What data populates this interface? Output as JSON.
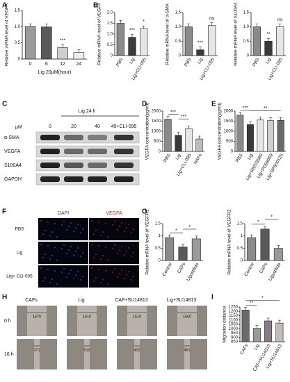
{
  "chart_data": [
    {
      "type": "bar",
      "ylabel": "Relative mRNA level of VEGFA",
      "xlabel": "Lig 20μM(hour)",
      "categories": [
        "0",
        "6",
        "12",
        "24"
      ],
      "values": [
        1.0,
        0.99,
        0.35,
        0.2
      ],
      "colors": [
        "#9a9a9a",
        "#5a5a5a",
        "#cfcfcf",
        "#efefef"
      ],
      "ylim": [
        0,
        1.5
      ],
      "yticks": [
        0,
        0.5,
        {
          "value": 1,
          "label": "1.0"
        },
        1.5
      ],
      "annotations": [
        "***"
      ]
    },
    {
      "type": "bar",
      "ylabel": "Relative mRNA level of VEGFA",
      "categories": [
        "PBS",
        "Lig",
        "Lig+CLI-095"
      ],
      "values": [
        1.5,
        0.85,
        1.25
      ],
      "colors": [
        "#8a8a8a",
        "#3a3a3a",
        "#e6e6e6"
      ],
      "ylim": [
        0,
        2
      ],
      "yticks": [
        0,
        0.5,
        {
          "value": 1,
          "label": "1.0"
        },
        1.5,
        {
          "value": 2,
          "label": "2.0"
        }
      ],
      "annotations": [
        "***",
        "*"
      ]
    },
    {
      "type": "bar",
      "ylabel": "Relative mRNA level of α-SMA",
      "categories": [
        "PBS",
        "Lig",
        "Lig+CLI-095"
      ],
      "values": [
        1.0,
        0.2,
        1.05
      ],
      "colors": [
        "#8a8a8a",
        "#3a3a3a",
        "#e6e6e6"
      ],
      "ylim": [
        0,
        1.5
      ],
      "yticks": [
        0,
        0.5,
        {
          "value": 1,
          "label": "1.0"
        },
        1.5
      ],
      "annotations": [
        "***",
        "ns"
      ]
    },
    {
      "type": "bar",
      "ylabel": "Relative mRNA level of S100A4",
      "categories": [
        "PBS",
        "Lig",
        "Lig+CLI-095"
      ],
      "values": [
        1.0,
        0.5,
        1.0
      ],
      "colors": [
        "#8a8a8a",
        "#3a3a3a",
        "#e6e6e6"
      ],
      "ylim": [
        0,
        1.5
      ],
      "yticks": [
        0,
        0.5,
        {
          "value": 1,
          "label": "1.0"
        },
        1.5
      ],
      "annotations": [
        "**",
        "ns"
      ]
    },
    {
      "type": "bar",
      "ylabel": "VEGFA concentration(pg/ml)",
      "categories": [
        "PBS",
        "Lig",
        "Lig+CLI-095",
        "NAFs"
      ],
      "values": [
        1600,
        800,
        1130,
        620
      ],
      "colors": [
        "#8a8a8a",
        "#3a3a3a",
        "#e6e6e6",
        "#bdbdbd"
      ],
      "ylim": [
        0,
        2000
      ],
      "yticks": [
        0,
        500,
        1000,
        1500,
        2000
      ],
      "annotations": [
        "***",
        "***"
      ]
    },
    {
      "type": "bar",
      "ylabel": "VEGFA concentration(pg/ml)",
      "categories": [
        "PBS",
        "Lig",
        "Lig+SB203580",
        "Lig+PD98059",
        "Lig+SP600125"
      ],
      "values": [
        1800,
        1330,
        1560,
        1530,
        1540
      ],
      "colors": [
        "#8a8a8a",
        "#3a3a3a",
        "#e6e6e6",
        "#cfcfcf",
        "#6a6a6a"
      ],
      "ylim": [
        0,
        2000
      ],
      "yticks": [
        0,
        500,
        1000,
        1500,
        2000
      ],
      "annotations": [
        "***",
        "**"
      ]
    },
    {
      "type": "bar",
      "ylabel": "Relative mRNA level of VEGFR1",
      "categories": [
        "Control",
        "CAFs",
        "Ligustilide"
      ],
      "values": [
        0.93,
        0.55,
        0.88
      ],
      "colors": [
        "#8a8a8a",
        "#5a5a5a",
        "#9a9a9a"
      ],
      "ylim": [
        0,
        1.5
      ],
      "yticks": [
        0,
        0.5,
        1,
        1.5
      ],
      "annotations": [
        "*",
        "*"
      ]
    },
    {
      "type": "bar",
      "ylabel": "Relative mRNA level of VEGFR2",
      "categories": [
        "Control",
        "CAFs",
        "Ligustilide"
      ],
      "values": [
        0.93,
        1.28,
        0.49
      ],
      "colors": [
        "#8a8a8a",
        "#5a5a5a",
        "#9a9a9a"
      ],
      "ylim": [
        0,
        1.5
      ],
      "yticks": [
        0,
        0.5,
        1,
        1.5
      ],
      "annotations": [
        "*",
        "*"
      ]
    },
    {
      "type": "bar",
      "ylabel": "Migration distance",
      "categories": [
        "CAFs",
        "Lig",
        "CAF+SU14813",
        "Lig+SU14813"
      ],
      "values": [
        1215,
        1005,
        1090,
        1065
      ],
      "colors": [
        "#6a6a6a",
        "#9a9a9a",
        "#8a7a85",
        "#c4bcb8"
      ],
      "ylim": [
        850,
        1250
      ],
      "yticks": [
        850,
        900,
        950,
        1000,
        1050,
        1100,
        1150,
        1200,
        1250
      ],
      "annotations": [
        "**",
        "*"
      ]
    }
  ],
  "panels": [
    "A",
    "B",
    "C",
    "D",
    "E",
    "F",
    "G",
    "H",
    "I"
  ],
  "blot": {
    "unit": "μM",
    "treatment": "Lig  24 h",
    "lanes": [
      "0",
      "20",
      "40",
      "40+CLI-095"
    ],
    "proteins": [
      "α-SMA",
      "VEGFA",
      "S100A4",
      "GAPDH"
    ]
  },
  "staining": {
    "channels": [
      "DAPI",
      "VEGFA"
    ],
    "rows": [
      "PBS",
      "Lig",
      "Lig+ CLI-095"
    ]
  },
  "migration": {
    "columns": [
      "CAFs",
      "Lig",
      "CAF+SU14813",
      "Lig+SU14813"
    ],
    "rows": [
      "0 h",
      "16 h"
    ],
    "widths": [
      [
        1570,
        1510,
        1510,
        1500
      ],
      [
        371,
        510,
        402,
        461
      ]
    ]
  }
}
